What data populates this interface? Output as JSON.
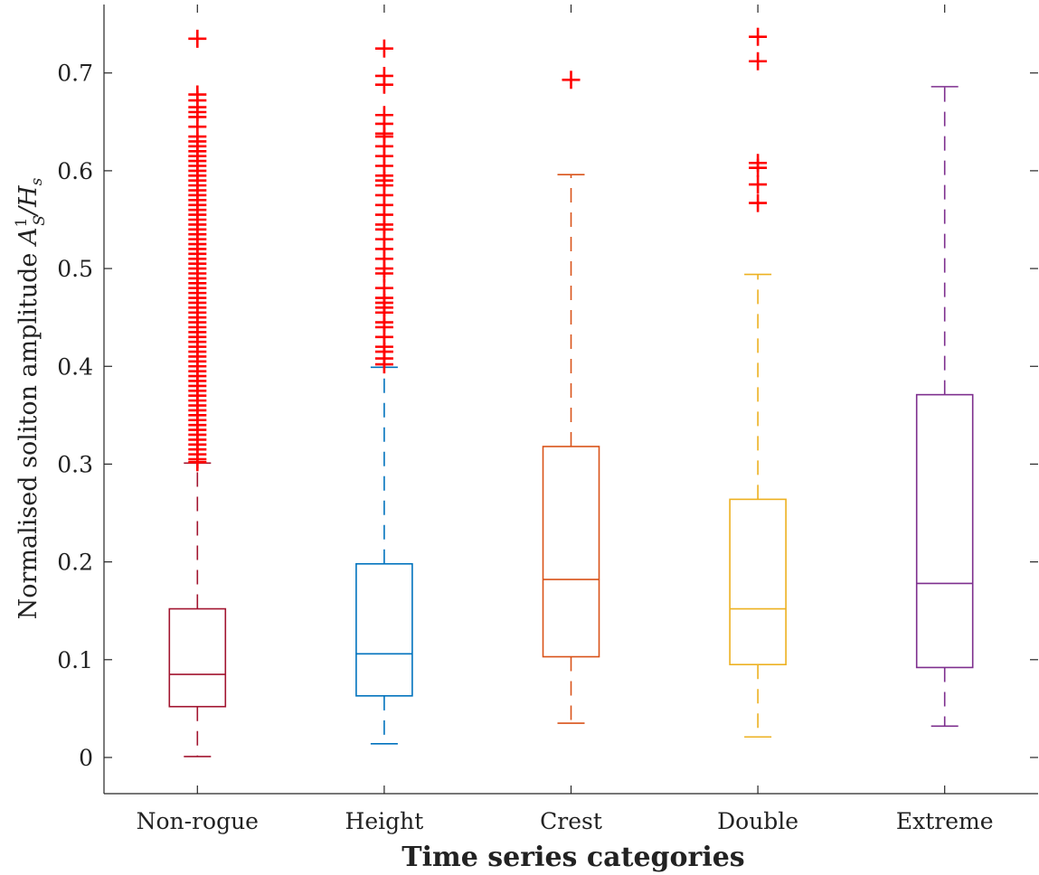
{
  "chart_data": {
    "type": "boxplot",
    "xlabel": "Time series categories",
    "ylabel": "Normalised soliton amplitude",
    "ylabel_math": {
      "base": "A",
      "sup": "1",
      "sub": "S",
      "rest": "/H",
      "rest_sub": "s"
    },
    "ylim": [
      -0.037,
      0.77
    ],
    "yticks": [
      "0",
      "0.1",
      "0.2",
      "0.3",
      "0.4",
      "0.5",
      "0.6",
      "0.7"
    ],
    "grid": false,
    "categories": [
      "Non-rogue",
      "Height",
      "Crest",
      "Double",
      "Extreme"
    ],
    "colors": [
      "#A2142F",
      "#0072BD",
      "#D95319",
      "#EDB120",
      "#7E2F8E"
    ],
    "outlier_color": "#FF0000",
    "boxes": [
      {
        "min": 0.001,
        "q1": 0.052,
        "median": 0.085,
        "q3": 0.152,
        "max": 0.301,
        "outliers": [
          0.302,
          0.305,
          0.31,
          0.315,
          0.32,
          0.325,
          0.33,
          0.335,
          0.34,
          0.345,
          0.35,
          0.355,
          0.36,
          0.365,
          0.37,
          0.375,
          0.38,
          0.385,
          0.39,
          0.395,
          0.4,
          0.405,
          0.41,
          0.415,
          0.42,
          0.425,
          0.43,
          0.435,
          0.44,
          0.445,
          0.45,
          0.455,
          0.46,
          0.465,
          0.47,
          0.475,
          0.48,
          0.485,
          0.49,
          0.495,
          0.5,
          0.505,
          0.51,
          0.515,
          0.52,
          0.525,
          0.53,
          0.535,
          0.54,
          0.545,
          0.55,
          0.555,
          0.56,
          0.565,
          0.57,
          0.575,
          0.58,
          0.585,
          0.59,
          0.595,
          0.6,
          0.605,
          0.61,
          0.615,
          0.62,
          0.625,
          0.63,
          0.635,
          0.645,
          0.655,
          0.66,
          0.665,
          0.672,
          0.678,
          0.735
        ]
      },
      {
        "min": 0.014,
        "q1": 0.063,
        "median": 0.106,
        "q3": 0.198,
        "max": 0.399,
        "outliers": [
          0.402,
          0.408,
          0.415,
          0.42,
          0.43,
          0.44,
          0.445,
          0.455,
          0.46,
          0.465,
          0.47,
          0.48,
          0.495,
          0.5,
          0.51,
          0.52,
          0.53,
          0.54,
          0.545,
          0.555,
          0.565,
          0.575,
          0.585,
          0.59,
          0.595,
          0.605,
          0.615,
          0.625,
          0.635,
          0.638,
          0.648,
          0.657,
          0.688,
          0.697,
          0.725
        ]
      },
      {
        "min": 0.035,
        "q1": 0.103,
        "median": 0.182,
        "q3": 0.318,
        "max": 0.596,
        "outliers": [
          0.693
        ]
      },
      {
        "min": 0.021,
        "q1": 0.095,
        "median": 0.152,
        "q3": 0.264,
        "max": 0.494,
        "outliers": [
          0.567,
          0.586,
          0.603,
          0.608,
          0.712,
          0.737
        ]
      },
      {
        "min": 0.032,
        "q1": 0.092,
        "median": 0.178,
        "q3": 0.371,
        "max": 0.686,
        "outliers": []
      }
    ]
  }
}
